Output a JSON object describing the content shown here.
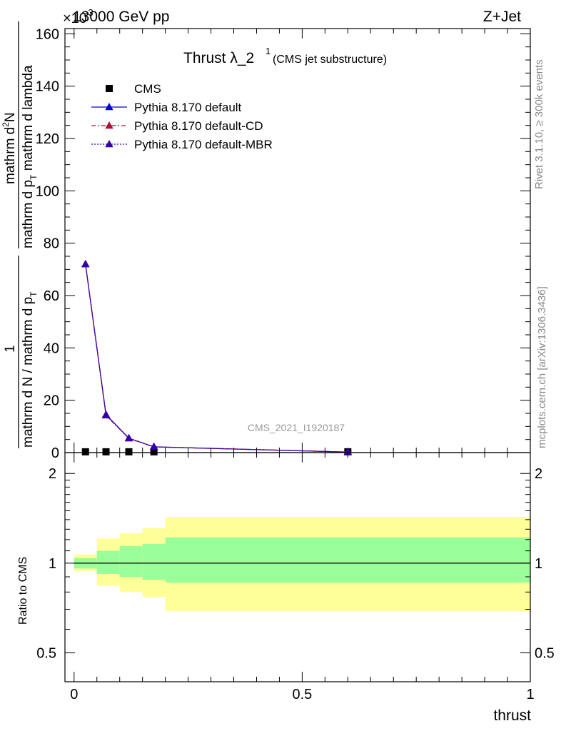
{
  "header": {
    "left": "13000 GeV pp",
    "right": "Z+Jet",
    "multiplier": "×10",
    "multiplier_exp": "-3"
  },
  "side_labels": {
    "rivet": "Rivet 3.1.10, ≥ 300k events",
    "mcplots": "mcplots.cern.ch [arXiv:1306.3436]"
  },
  "watermark": "CMS_2021_I1920187",
  "chart_data": [
    {
      "type": "line",
      "title_main": "Thrust λ_2",
      "title_sup": "1",
      "title_sub": "(CMS jet substructure)",
      "ylabel_num": "mathrm d",
      "ylabel_num_sup": "2",
      "ylabel_num_tail": "N",
      "ylabel_den": "mathrm d p",
      "ylabel_den_sub": "T",
      "ylabel_den_tail": " mathrm d lambda",
      "ylabel_frac2_num": "1",
      "ylabel_frac2_den": "mathrm d N / mathrm d p",
      "ylabel_frac2_den_sub": "T",
      "ylim": [
        0,
        162
      ],
      "yticks": [
        0,
        20,
        40,
        60,
        80,
        100,
        120,
        140,
        160
      ],
      "xlim": [
        -0.02,
        1.0
      ],
      "legend": [
        {
          "name": "CMS"
        },
        {
          "name": "Pythia 8.170 default"
        },
        {
          "name": "Pythia 8.170 default-CD"
        },
        {
          "name": "Pythia 8.170 default-MBR"
        }
      ],
      "series": [
        {
          "name": "CMS",
          "x": [
            0.025,
            0.07,
            0.12,
            0.175,
            0.6
          ],
          "y": [
            0.3,
            0.3,
            0.3,
            0.3,
            0.3
          ]
        },
        {
          "name": "Pythia 8.170 default",
          "x": [
            0.025,
            0.07,
            0.12,
            0.175,
            0.6
          ],
          "y": [
            72,
            14.5,
            5.5,
            2.2,
            0.2
          ]
        },
        {
          "name": "Pythia 8.170 default-CD",
          "x": [
            0.025,
            0.07,
            0.12,
            0.175,
            0.6
          ],
          "y": [
            72,
            14.2,
            5.4,
            2.2,
            0.2
          ]
        },
        {
          "name": "Pythia 8.170 default-MBR",
          "x": [
            0.025,
            0.07,
            0.12,
            0.175,
            0.6
          ],
          "y": [
            72,
            14.3,
            5.5,
            2.2,
            0.2
          ]
        }
      ],
      "colors": {
        "CMS": "#000000",
        "Pythia 8.170 default": "#0000dd",
        "Pythia 8.170 default-CD": "#aa1133",
        "Pythia 8.170 default-MBR": "#3300aa"
      }
    },
    {
      "type": "area",
      "ylabel": "Ratio to CMS",
      "xlabel": "thrust",
      "ylim": [
        0.4,
        2.35
      ],
      "log_y": true,
      "yticks": [
        0.5,
        1,
        2
      ],
      "ytick_labels": [
        "0.5",
        "1",
        "2"
      ],
      "xlim": [
        -0.02,
        1.0
      ],
      "xticks": [
        0,
        0.5,
        1
      ],
      "xtick_labels": [
        "0",
        "0.5",
        "1"
      ],
      "bins": [
        0.0,
        0.05,
        0.1,
        0.15,
        0.2,
        1.0
      ],
      "band_inner": [
        [
          0.96,
          1.04
        ],
        [
          0.92,
          1.1
        ],
        [
          0.9,
          1.14
        ],
        [
          0.88,
          1.16
        ],
        [
          0.86,
          1.22
        ]
      ],
      "band_outer": [
        [
          0.94,
          1.07
        ],
        [
          0.84,
          1.21
        ],
        [
          0.8,
          1.26
        ],
        [
          0.77,
          1.31
        ],
        [
          0.69,
          1.43
        ]
      ],
      "band_colors": {
        "inner": "#99ff99",
        "outer": "#ffff99"
      },
      "reference": 1
    }
  ]
}
